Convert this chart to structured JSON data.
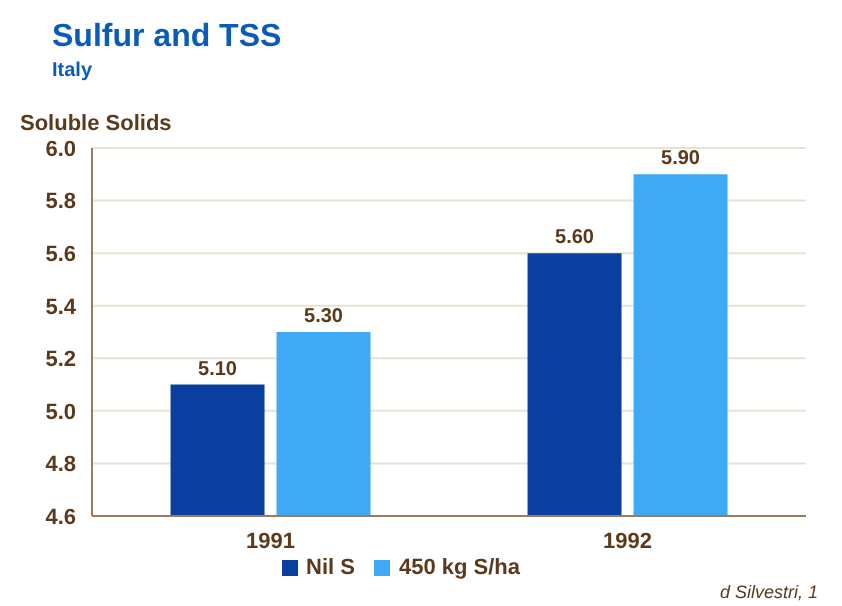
{
  "chart_data": {
    "type": "bar",
    "title": "Sulfur and TSS",
    "subtitle": "Italy",
    "ylabel": "Soluble Solids",
    "categories": [
      "1991",
      "1992"
    ],
    "series": [
      {
        "name": "Nil S",
        "color": "#0a3fa0",
        "values": [
          5.1,
          5.6
        ],
        "value_labels": [
          "5.10",
          "5.60"
        ]
      },
      {
        "name": "450 kg S/ha",
        "color": "#3fa9f5",
        "values": [
          5.3,
          5.9
        ],
        "value_labels": [
          "5.30",
          "5.90"
        ]
      }
    ],
    "ylim": [
      4.6,
      6.0
    ],
    "yticks": [
      4.6,
      4.8,
      {
        "value": 5,
        "label": "5.0"
      },
      5.2,
      5.4,
      5.6,
      5.8,
      {
        "value": 6,
        "label": "6.0"
      }
    ],
    "grid": "y",
    "legend": "bottom",
    "annotations": [
      "d Silvestri, 1"
    ]
  }
}
